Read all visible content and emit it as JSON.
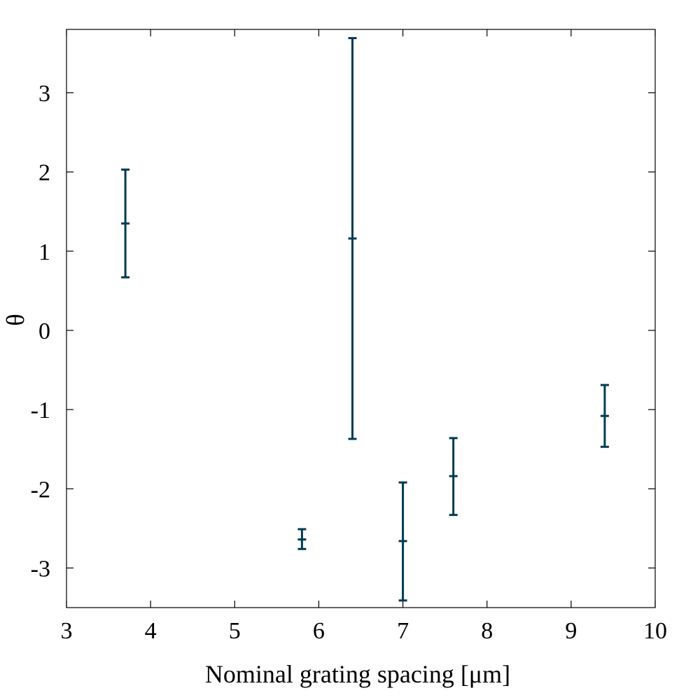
{
  "chart_data": {
    "type": "scatter",
    "style": "error-bars",
    "title": "",
    "xlabel": "Nominal grating spacing [μm]",
    "ylabel": "θ",
    "xlim": [
      3,
      10
    ],
    "ylim": [
      -3.5,
      3.8
    ],
    "xticks": [
      "3",
      "4",
      "5",
      "6",
      "7",
      "8",
      "9",
      "10"
    ],
    "yticks": [
      "-3",
      "-2",
      "-1",
      "0",
      "1",
      "2",
      "3"
    ],
    "grid": false,
    "legend": "none",
    "color": "#003b52",
    "points": [
      {
        "x": 3.7,
        "y": 1.35,
        "ylow": 0.67,
        "yhigh": 2.03
      },
      {
        "x": 5.8,
        "y": -2.64,
        "ylow": -2.76,
        "yhigh": -2.51
      },
      {
        "x": 6.4,
        "y": 1.16,
        "ylow": -1.37,
        "yhigh": 3.69
      },
      {
        "x": 7.0,
        "y": -2.66,
        "ylow": -3.41,
        "yhigh": -1.92
      },
      {
        "x": 7.6,
        "y": -1.84,
        "ylow": -2.33,
        "yhigh": -1.36
      },
      {
        "x": 9.4,
        "y": -1.08,
        "ylow": -1.47,
        "yhigh": -0.69
      }
    ]
  }
}
